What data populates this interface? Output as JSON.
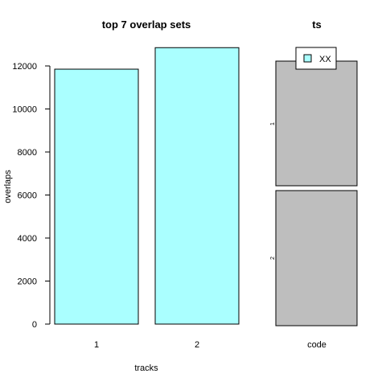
{
  "chart_data": [
    {
      "type": "bar",
      "title": "top 7 overlap sets",
      "xlabel": "tracks",
      "ylabel": "overlaps",
      "categories": [
        "1",
        "2"
      ],
      "values": [
        11850,
        12850
      ],
      "ylim": [
        0,
        12000
      ],
      "yticks": [
        0,
        2000,
        4000,
        6000,
        8000,
        10000,
        12000
      ],
      "bar_color": "#aaffff",
      "grid": false
    },
    {
      "type": "bar",
      "title": "ts",
      "xlabel": "",
      "ylabel": "",
      "categories": [
        "code"
      ],
      "segment_labels": [
        "1",
        "2"
      ],
      "bar_color": "#bebebe",
      "legend": {
        "entries": [
          "XX"
        ],
        "swatch_color": "#aaffff",
        "position": "top"
      },
      "grid": false
    }
  ]
}
